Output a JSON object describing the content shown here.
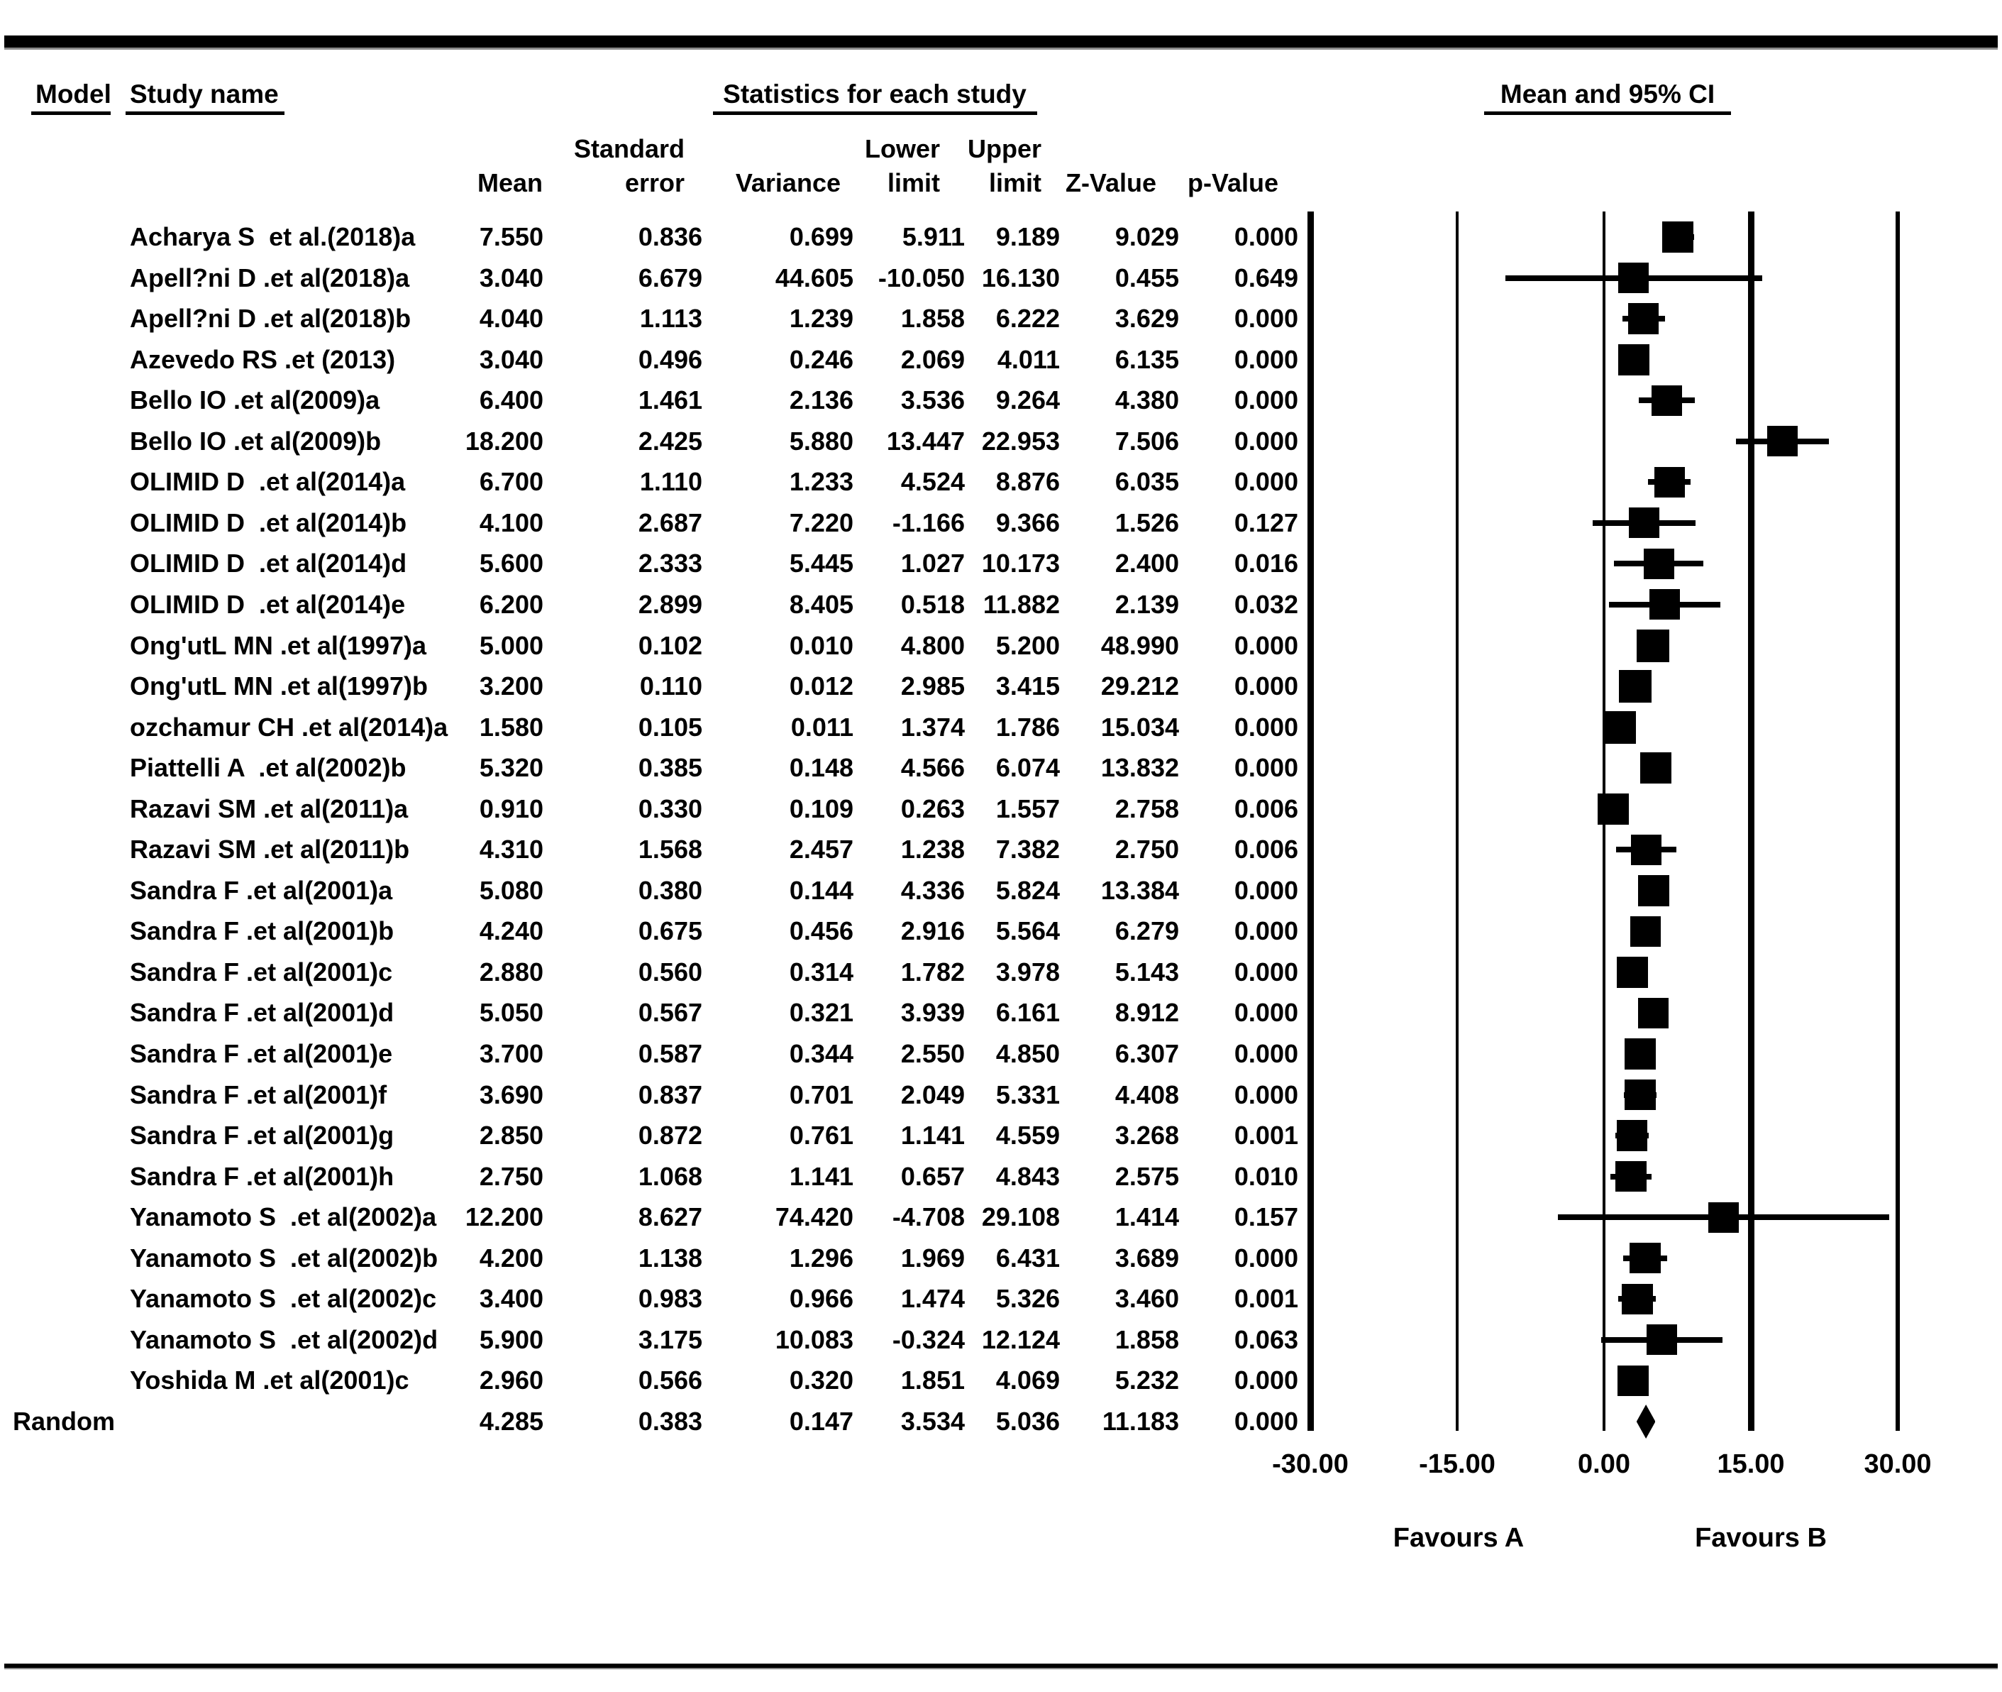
{
  "header": {
    "model": "Model",
    "study": "Study name",
    "stats": "Statistics for each study",
    "plot": "Mean and 95% CI"
  },
  "columns": {
    "line1": [
      "Standard",
      "Lower",
      "Upper"
    ],
    "line2": [
      "Mean",
      "error",
      "Variance",
      "limit",
      "limit",
      "Z-Value",
      "p-Value"
    ]
  },
  "footer": {
    "favours_a": "Favours A",
    "favours_b": "Favours B"
  },
  "colors": {
    "ink": "#000000",
    "background": "#ffffff",
    "rule_shadow": "#8a8a8a"
  },
  "chart_data": {
    "type": "forest",
    "title": "Mean and 95% CI",
    "stats_title": "Statistics for each study",
    "xlabel_left": "Favours A",
    "xlabel_right": "Favours B",
    "x_axis": {
      "min": -30,
      "max": 30,
      "ticks": [
        -30,
        -15,
        0,
        15,
        30
      ],
      "tick_labels": [
        "-30.00",
        "-15.00",
        "0.00",
        "15.00",
        "30.00"
      ],
      "gridlines_at": [
        -30,
        -15,
        0,
        15,
        30
      ]
    },
    "legend_position": "none",
    "grid": "vertical-lines",
    "studies": [
      {
        "name": "Acharya S  et al.(2018)a",
        "mean": 7.55,
        "se": 0.836,
        "variance": 0.699,
        "lower": 5.911,
        "upper": 9.189,
        "z": 9.029,
        "p": 0.0
      },
      {
        "name": "Apell?ni D .et al(2018)a",
        "mean": 3.04,
        "se": 6.679,
        "variance": 44.605,
        "lower": -10.05,
        "upper": 16.13,
        "z": 0.455,
        "p": 0.649
      },
      {
        "name": "Apell?ni D .et al(2018)b",
        "mean": 4.04,
        "se": 1.113,
        "variance": 1.239,
        "lower": 1.858,
        "upper": 6.222,
        "z": 3.629,
        "p": 0.0
      },
      {
        "name": "Azevedo RS .et (2013)",
        "mean": 3.04,
        "se": 0.496,
        "variance": 0.246,
        "lower": 2.069,
        "upper": 4.011,
        "z": 6.135,
        "p": 0.0
      },
      {
        "name": "Bello IO .et al(2009)a",
        "mean": 6.4,
        "se": 1.461,
        "variance": 2.136,
        "lower": 3.536,
        "upper": 9.264,
        "z": 4.38,
        "p": 0.0
      },
      {
        "name": "Bello IO .et al(2009)b",
        "mean": 18.2,
        "se": 2.425,
        "variance": 5.88,
        "lower": 13.447,
        "upper": 22.953,
        "z": 7.506,
        "p": 0.0
      },
      {
        "name": "OLIMID D  .et al(2014)a",
        "mean": 6.7,
        "se": 1.11,
        "variance": 1.233,
        "lower": 4.524,
        "upper": 8.876,
        "z": 6.035,
        "p": 0.0
      },
      {
        "name": "OLIMID D  .et al(2014)b",
        "mean": 4.1,
        "se": 2.687,
        "variance": 7.22,
        "lower": -1.166,
        "upper": 9.366,
        "z": 1.526,
        "p": 0.127
      },
      {
        "name": "OLIMID D  .et al(2014)d",
        "mean": 5.6,
        "se": 2.333,
        "variance": 5.445,
        "lower": 1.027,
        "upper": 10.173,
        "z": 2.4,
        "p": 0.016
      },
      {
        "name": "OLIMID D  .et al(2014)e",
        "mean": 6.2,
        "se": 2.899,
        "variance": 8.405,
        "lower": 0.518,
        "upper": 11.882,
        "z": 2.139,
        "p": 0.032
      },
      {
        "name": "Ong'utL MN .et al(1997)a",
        "mean": 5.0,
        "se": 0.102,
        "variance": 0.01,
        "lower": 4.8,
        "upper": 5.2,
        "z": 48.99,
        "p": 0.0
      },
      {
        "name": "Ong'utL MN .et al(1997)b",
        "mean": 3.2,
        "se": 0.11,
        "variance": 0.012,
        "lower": 2.985,
        "upper": 3.415,
        "z": 29.212,
        "p": 0.0
      },
      {
        "name": "ozchamur CH .et al(2014)a",
        "mean": 1.58,
        "se": 0.105,
        "variance": 0.011,
        "lower": 1.374,
        "upper": 1.786,
        "z": 15.034,
        "p": 0.0
      },
      {
        "name": "Piattelli A  .et al(2002)b",
        "mean": 5.32,
        "se": 0.385,
        "variance": 0.148,
        "lower": 4.566,
        "upper": 6.074,
        "z": 13.832,
        "p": 0.0
      },
      {
        "name": "Razavi SM .et al(2011)a",
        "mean": 0.91,
        "se": 0.33,
        "variance": 0.109,
        "lower": 0.263,
        "upper": 1.557,
        "z": 2.758,
        "p": 0.006
      },
      {
        "name": "Razavi SM .et al(2011)b",
        "mean": 4.31,
        "se": 1.568,
        "variance": 2.457,
        "lower": 1.238,
        "upper": 7.382,
        "z": 2.75,
        "p": 0.006
      },
      {
        "name": "Sandra F .et al(2001)a",
        "mean": 5.08,
        "se": 0.38,
        "variance": 0.144,
        "lower": 4.336,
        "upper": 5.824,
        "z": 13.384,
        "p": 0.0
      },
      {
        "name": "Sandra F .et al(2001)b",
        "mean": 4.24,
        "se": 0.675,
        "variance": 0.456,
        "lower": 2.916,
        "upper": 5.564,
        "z": 6.279,
        "p": 0.0
      },
      {
        "name": "Sandra F .et al(2001)c",
        "mean": 2.88,
        "se": 0.56,
        "variance": 0.314,
        "lower": 1.782,
        "upper": 3.978,
        "z": 5.143,
        "p": 0.0
      },
      {
        "name": "Sandra F .et al(2001)d",
        "mean": 5.05,
        "se": 0.567,
        "variance": 0.321,
        "lower": 3.939,
        "upper": 6.161,
        "z": 8.912,
        "p": 0.0
      },
      {
        "name": "Sandra F .et al(2001)e",
        "mean": 3.7,
        "se": 0.587,
        "variance": 0.344,
        "lower": 2.55,
        "upper": 4.85,
        "z": 6.307,
        "p": 0.0
      },
      {
        "name": "Sandra F .et al(2001)f",
        "mean": 3.69,
        "se": 0.837,
        "variance": 0.701,
        "lower": 2.049,
        "upper": 5.331,
        "z": 4.408,
        "p": 0.0
      },
      {
        "name": "Sandra F .et al(2001)g",
        "mean": 2.85,
        "se": 0.872,
        "variance": 0.761,
        "lower": 1.141,
        "upper": 4.559,
        "z": 3.268,
        "p": 0.001
      },
      {
        "name": "Sandra F .et al(2001)h",
        "mean": 2.75,
        "se": 1.068,
        "variance": 1.141,
        "lower": 0.657,
        "upper": 4.843,
        "z": 2.575,
        "p": 0.01
      },
      {
        "name": "Yanamoto S  .et al(2002)a",
        "mean": 12.2,
        "se": 8.627,
        "variance": 74.42,
        "lower": -4.708,
        "upper": 29.108,
        "z": 1.414,
        "p": 0.157
      },
      {
        "name": "Yanamoto S  .et al(2002)b",
        "mean": 4.2,
        "se": 1.138,
        "variance": 1.296,
        "lower": 1.969,
        "upper": 6.431,
        "z": 3.689,
        "p": 0.0
      },
      {
        "name": "Yanamoto S  .et al(2002)c",
        "mean": 3.4,
        "se": 0.983,
        "variance": 0.966,
        "lower": 1.474,
        "upper": 5.326,
        "z": 3.46,
        "p": 0.001
      },
      {
        "name": "Yanamoto S  .et al(2002)d",
        "mean": 5.9,
        "se": 3.175,
        "variance": 10.083,
        "lower": -0.324,
        "upper": 12.124,
        "z": 1.858,
        "p": 0.063
      },
      {
        "name": "Yoshida M .et al(2001)c",
        "mean": 2.96,
        "se": 0.566,
        "variance": 0.32,
        "lower": 1.851,
        "upper": 4.069,
        "z": 5.232,
        "p": 0.0
      }
    ],
    "summary": {
      "model": "Random",
      "mean": 4.285,
      "se": 0.383,
      "variance": 0.147,
      "lower": 3.534,
      "upper": 5.036,
      "z": 11.183,
      "p": 0.0,
      "marker": "diamond"
    }
  }
}
